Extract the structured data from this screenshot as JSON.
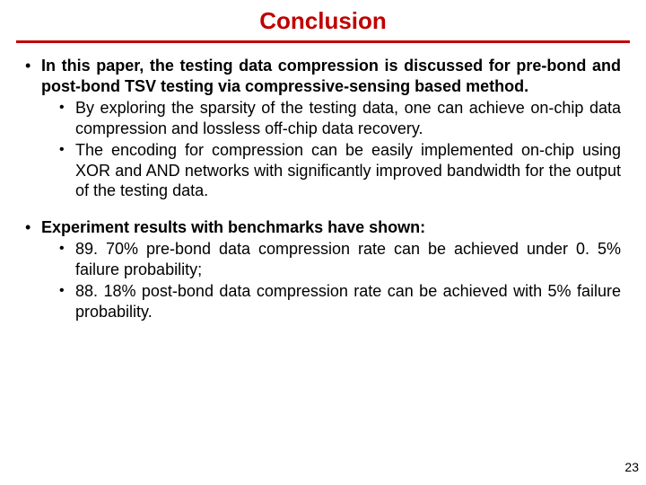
{
  "colors": {
    "title": "#c00000",
    "rule": "#c00000",
    "text": "#000000",
    "bg": "#ffffff"
  },
  "typography": {
    "title_fontsize": 26,
    "body_fontsize": 18,
    "pagenum_fontsize": 14,
    "font_family": "Verdana"
  },
  "title": "Conclusion",
  "page_number": "23",
  "bullets": [
    {
      "lead": "In this paper, the testing data compression is discussed for pre-bond and post-bond TSV testing via compressive-sensing based method.",
      "lead_bold": true,
      "subs": [
        "By exploring the sparsity of the testing data, one can achieve on-chip data compression and lossless off-chip data recovery.",
        "The encoding for compression can be easily implemented on-chip using XOR and AND networks with significantly improved bandwidth for the output of the testing data."
      ]
    },
    {
      "lead": "Experiment results with benchmarks have shown:",
      "lead_bold": true,
      "subs": [
        "89. 70% pre-bond data compression rate can be achieved under 0. 5% failure probability;",
        "88. 18% post-bond data compression rate can be achieved with 5% failure probability."
      ]
    }
  ]
}
